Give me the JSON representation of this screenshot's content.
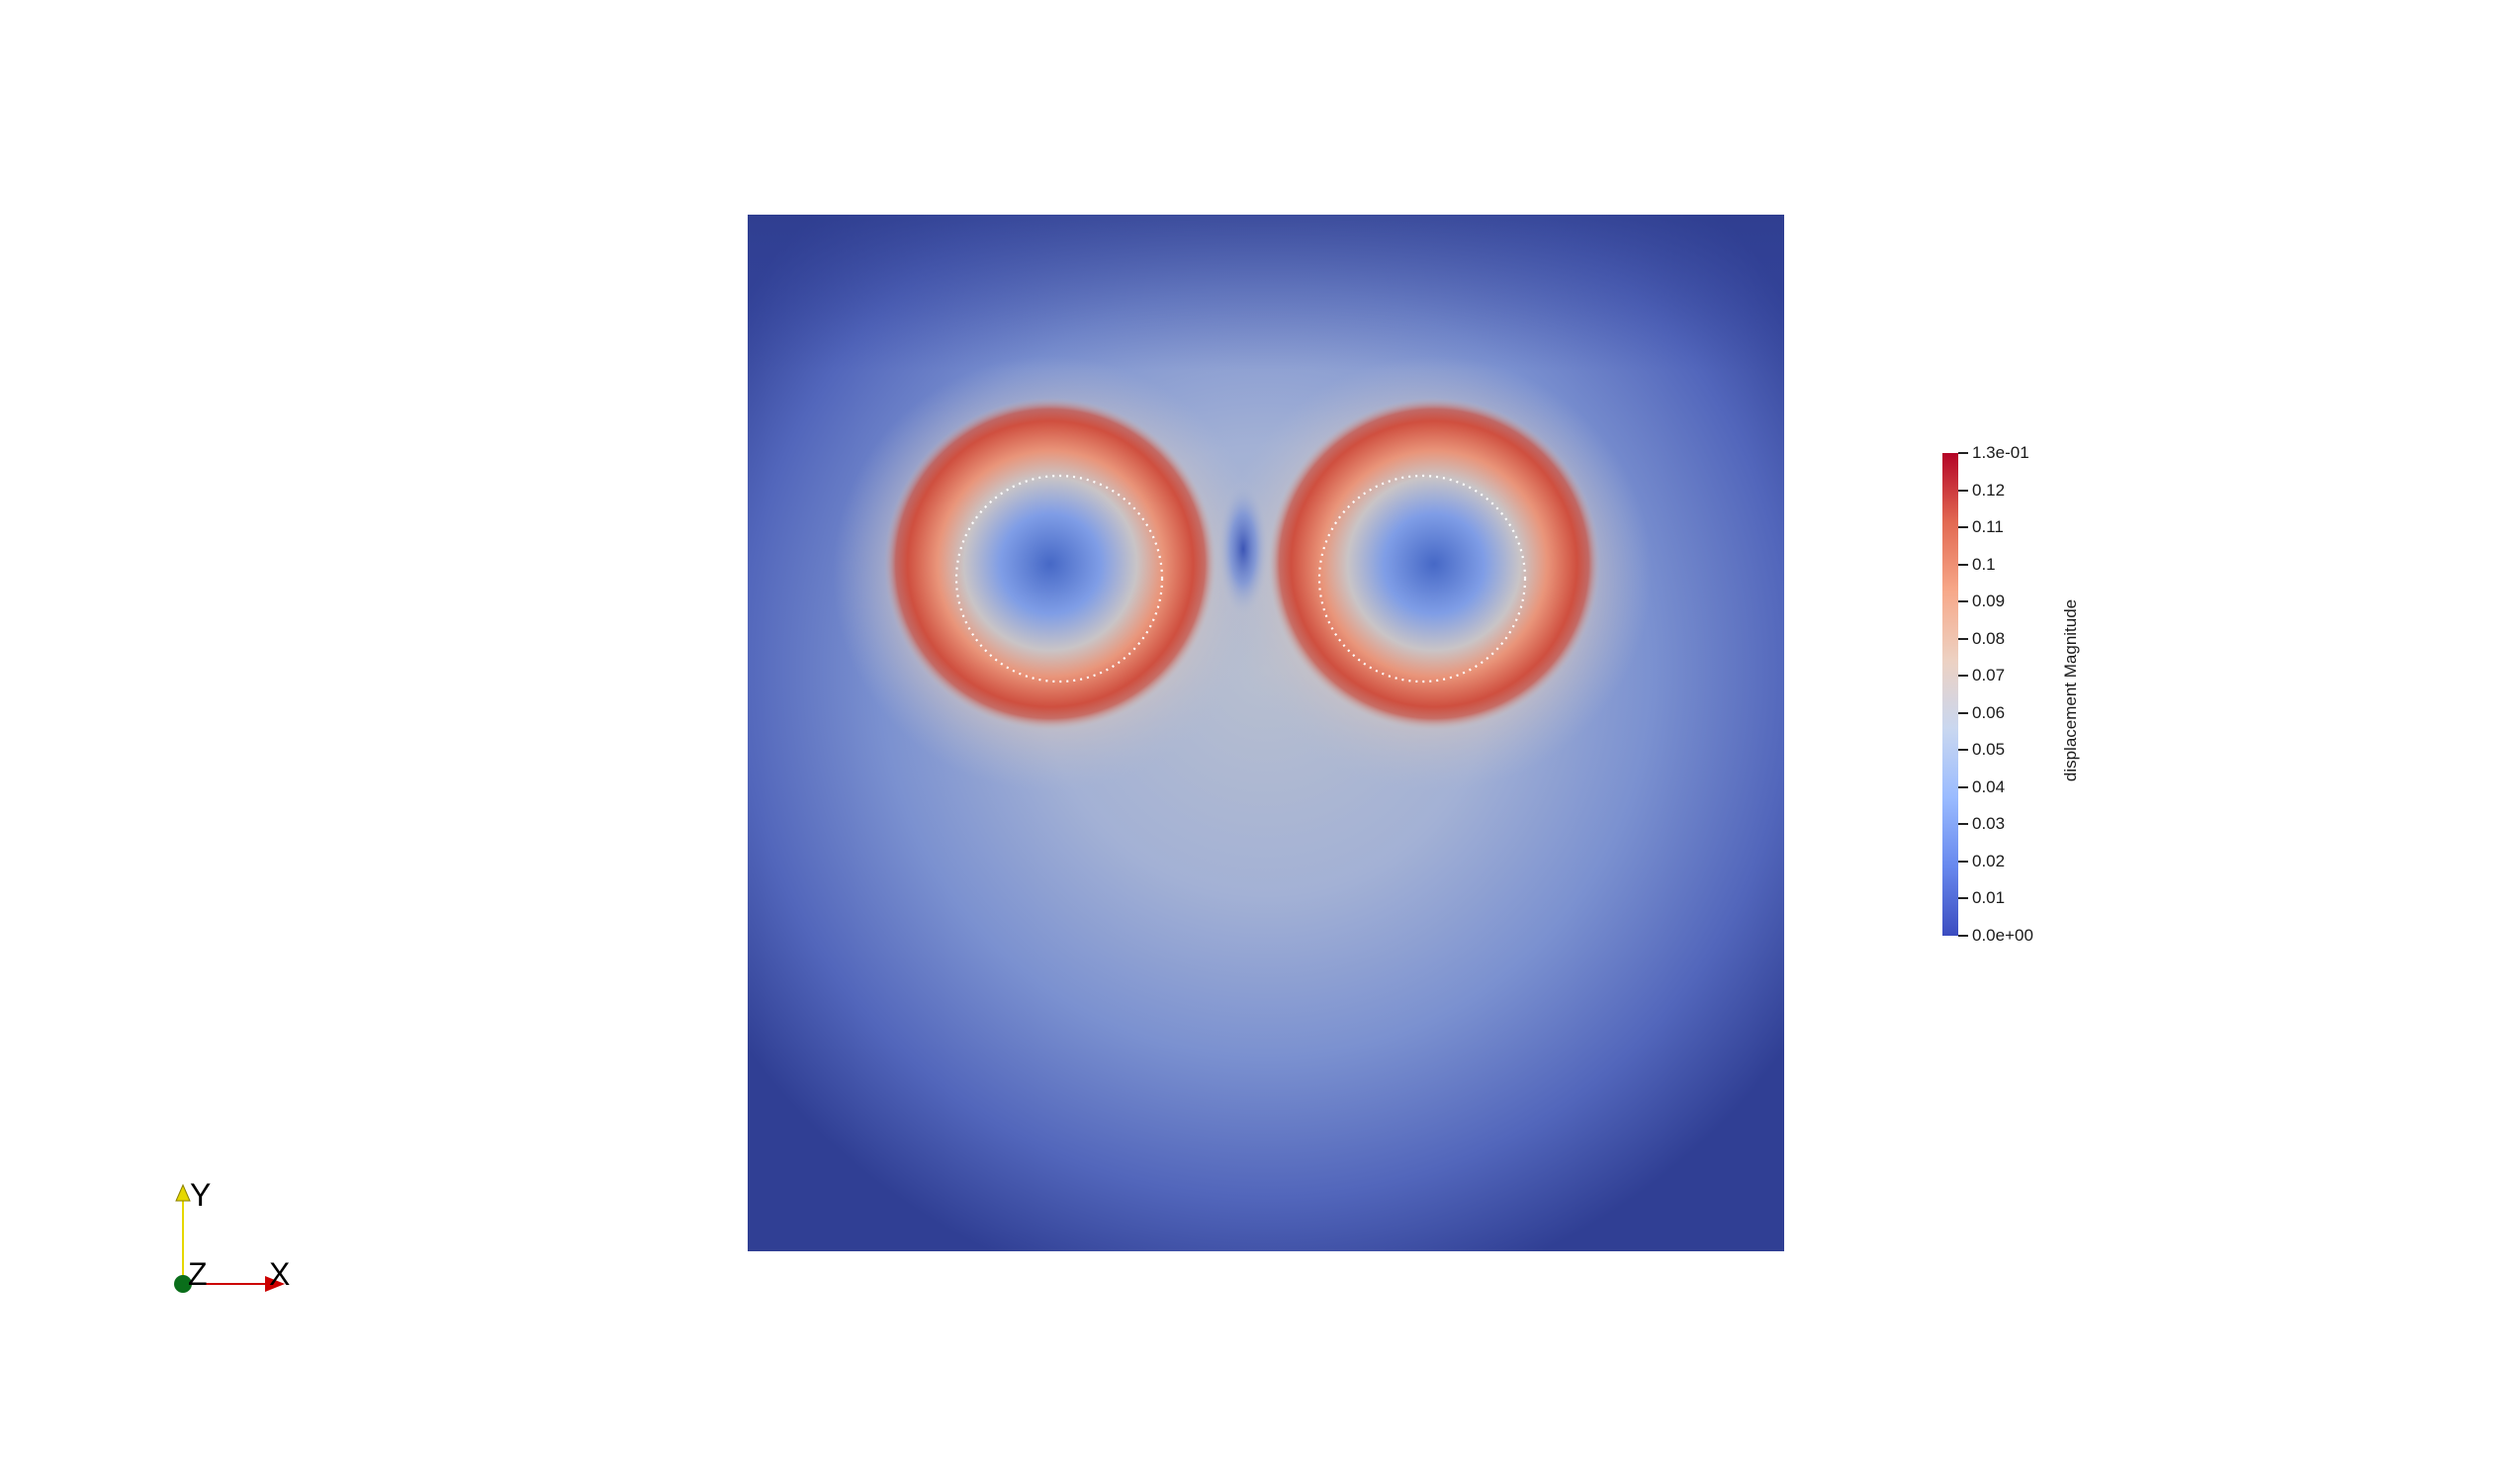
{
  "viewer": {
    "background": "#ffffff"
  },
  "field": {
    "name": "displacement Magnitude",
    "domain_color_min": "#3b4cc0",
    "domain_color_max": "#b40426"
  },
  "colorbar": {
    "title": "displacement Magnitude",
    "min_label": "0.0e+00",
    "max_label": "1.3e-01",
    "range": [
      0,
      0.13
    ],
    "tick_labels": [
      "0.01",
      "0.02",
      "0.03",
      "0.04",
      "0.05",
      "0.06",
      "0.07",
      "0.08",
      "0.09",
      "0.1",
      "0.11",
      "0.12"
    ],
    "tick_values": [
      0.01,
      0.02,
      0.03,
      0.04,
      0.05,
      0.06,
      0.07,
      0.08,
      0.09,
      0.1,
      0.11,
      0.12
    ],
    "colormap": [
      "#3b4cc0",
      "#6788ee",
      "#9abbff",
      "#c9d7f0",
      "#edd1c2",
      "#f7a889",
      "#e26952",
      "#b40426"
    ]
  },
  "orientation_axes": {
    "x_label": "X",
    "y_label": "Y",
    "z_label": "Z",
    "x_color": "#cc0000",
    "y_color": "#e6d800",
    "z_color": "#0a6e1a"
  }
}
